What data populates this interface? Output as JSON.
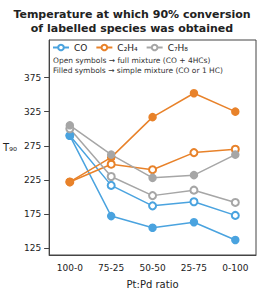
{
  "chart_data": {
    "type": "line",
    "title": "Temperature at which 90% conversion\nof labelled species was obtained",
    "x_label": "Pt:Pd ratio",
    "y_label": "T₉₀",
    "categories": [
      "100-0",
      "75-25",
      "50-50",
      "25-75",
      "0-100"
    ],
    "series": [
      {
        "name": "CO",
        "color": "#4aa3df",
        "marker": "open_circle",
        "values": [
          290,
          217,
          187,
          193,
          173
        ]
      },
      {
        "name": "CO",
        "color": "#4aa3df",
        "marker": "filled_circle",
        "values": [
          290,
          172,
          155,
          163,
          137
        ]
      },
      {
        "name": "C₂H₄",
        "color": "#e8822a",
        "marker": "open_circle",
        "values": [
          222,
          248,
          240,
          265,
          270
        ]
      },
      {
        "name": "C₂H₄",
        "color": "#e8822a",
        "marker": "filled_circle",
        "values": [
          222,
          258,
          317,
          352,
          325
        ]
      },
      {
        "name": "C₇H₈",
        "color": "#a6a6a6",
        "marker": "open_circle",
        "values": [
          300,
          230,
          202,
          210,
          192
        ]
      },
      {
        "name": "C₇H₈",
        "color": "#a6a6a6",
        "marker": "filled_circle",
        "values": [
          305,
          262,
          228,
          232,
          262
        ]
      }
    ],
    "annotations": [
      "Open symbols → full mixture (CO + 4HCs)",
      "Filled symbols → simple mixture (CO or 1 HC)"
    ],
    "ylim": [
      115,
      430
    ],
    "yticks": [
      125,
      175,
      225,
      275,
      325,
      375
    ],
    "grid": false,
    "legend": "top-left"
  }
}
